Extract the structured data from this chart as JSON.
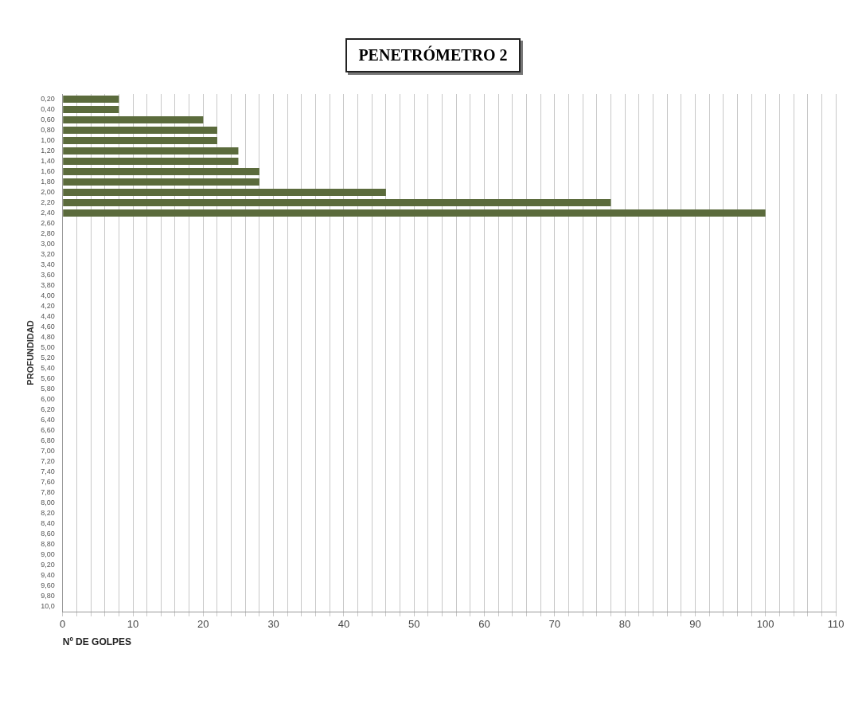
{
  "chart_data": {
    "type": "bar",
    "orientation": "horizontal",
    "title": "PENETRÓMETRO 2",
    "xlabel": "Nº DE GOLPES",
    "ylabel": "PROFUNDIDAD",
    "categories": [
      "0,20",
      "0,40",
      "0,60",
      "0,80",
      "1,00",
      "1,20",
      "1,40",
      "1,60",
      "1,80",
      "2,00",
      "2,20",
      "2,40",
      "2,60",
      "2,80",
      "3,00",
      "3,20",
      "3,40",
      "3,60",
      "3,80",
      "4,00",
      "4,20",
      "4,40",
      "4,60",
      "4,80",
      "5,00",
      "5,20",
      "5,40",
      "5,60",
      "5,80",
      "6,00",
      "6,20",
      "6,40",
      "6,60",
      "6,80",
      "7,00",
      "7,20",
      "7,40",
      "7,60",
      "7,80",
      "8,00",
      "8,20",
      "8,40",
      "8,60",
      "8,80",
      "9,00",
      "9,20",
      "9,40",
      "9,60",
      "9,80",
      "10,0"
    ],
    "values": [
      8,
      8,
      20,
      22,
      22,
      25,
      25,
      28,
      28,
      46,
      78,
      100,
      null,
      null,
      null,
      null,
      null,
      null,
      null,
      null,
      null,
      null,
      null,
      null,
      null,
      null,
      null,
      null,
      null,
      null,
      null,
      null,
      null,
      null,
      null,
      null,
      null,
      null,
      null,
      null,
      null,
      null,
      null,
      null,
      null,
      null,
      null,
      null,
      null,
      null
    ],
    "color": "#5b6b3c",
    "xlim": [
      0,
      110
    ],
    "xticks": [
      0,
      {
        "value": 2,
        "label": null
      },
      {
        "value": 4,
        "label": null
      },
      {
        "value": 6,
        "label": null
      },
      {
        "value": 8,
        "label": null
      },
      10,
      {
        "value": 12,
        "label": null
      },
      {
        "value": 14,
        "label": null
      },
      {
        "value": 16,
        "label": null
      },
      {
        "value": 18,
        "label": null
      },
      20,
      {
        "value": 22,
        "label": null
      },
      {
        "value": 24,
        "label": null
      },
      {
        "value": 26,
        "label": null
      },
      {
        "value": 28,
        "label": null
      },
      30,
      {
        "value": 32,
        "label": null
      },
      {
        "value": 34,
        "label": null
      },
      {
        "value": 36,
        "label": null
      },
      {
        "value": 38,
        "label": null
      },
      40,
      {
        "value": 42,
        "label": null
      },
      {
        "value": 44,
        "label": null
      },
      {
        "value": 46,
        "label": null
      },
      {
        "value": 48,
        "label": null
      },
      50,
      {
        "value": 52,
        "label": null
      },
      {
        "value": 54,
        "label": null
      },
      {
        "value": 56,
        "label": null
      },
      {
        "value": 58,
        "label": null
      },
      60,
      {
        "value": 62,
        "label": null
      },
      {
        "value": 64,
        "label": null
      },
      {
        "value": 66,
        "label": null
      },
      {
        "value": 68,
        "label": null
      },
      70,
      {
        "value": 72,
        "label": null
      },
      {
        "value": 74,
        "label": null
      },
      {
        "value": 76,
        "label": null
      },
      {
        "value": 78,
        "label": null
      },
      80,
      {
        "value": 82,
        "label": null
      },
      {
        "value": 84,
        "label": null
      },
      {
        "value": 86,
        "label": null
      },
      {
        "value": 88,
        "label": null
      },
      90,
      {
        "value": 92,
        "label": null
      },
      {
        "value": 94,
        "label": null
      },
      {
        "value": 96,
        "label": null
      },
      {
        "value": 98,
        "label": null
      },
      100,
      {
        "value": 102,
        "label": null
      },
      {
        "value": 104,
        "label": null
      },
      {
        "value": 106,
        "label": null
      },
      {
        "value": 108,
        "label": null
      },
      110
    ],
    "grid": "x"
  }
}
